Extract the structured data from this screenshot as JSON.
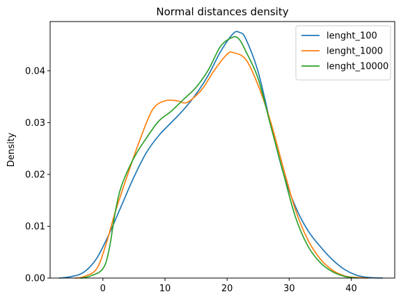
{
  "chart_data": {
    "type": "line",
    "title": "Normal distances density",
    "xlabel": "",
    "ylabel": "Density",
    "xlim": [
      -8.5,
      47
    ],
    "ylim": [
      0,
      0.0495
    ],
    "x_ticks": [
      0,
      10,
      20,
      30,
      40
    ],
    "x_tick_labels": [
      "0",
      "10",
      "20",
      "30",
      "40"
    ],
    "y_ticks": [
      0.0,
      0.01,
      0.02,
      0.03,
      0.04
    ],
    "y_tick_labels": [
      "0.00",
      "0.01",
      "0.02",
      "0.03",
      "0.04"
    ],
    "grid": false,
    "legend_position": "top-right",
    "series": [
      {
        "name": "lenght_100",
        "color": "#1f77b4",
        "points": [
          [
            -7,
            0.0
          ],
          [
            -5,
            0.0003
          ],
          [
            -3,
            0.0012
          ],
          [
            -1,
            0.0038
          ],
          [
            1,
            0.0085
          ],
          [
            3,
            0.014
          ],
          [
            5,
            0.0195
          ],
          [
            7,
            0.0242
          ],
          [
            9,
            0.0275
          ],
          [
            11,
            0.03
          ],
          [
            13,
            0.0325
          ],
          [
            15,
            0.0355
          ],
          [
            17,
            0.0392
          ],
          [
            19,
            0.0438
          ],
          [
            21,
            0.0472
          ],
          [
            22,
            0.0474
          ],
          [
            23,
            0.0462
          ],
          [
            25,
            0.0398
          ],
          [
            27,
            0.0298
          ],
          [
            29,
            0.0205
          ],
          [
            31,
            0.0138
          ],
          [
            33,
            0.0092
          ],
          [
            35,
            0.0061
          ],
          [
            37,
            0.0035
          ],
          [
            39,
            0.0016
          ],
          [
            41,
            0.0005
          ],
          [
            43,
            0.0001
          ],
          [
            45,
            0.0
          ]
        ]
      },
      {
        "name": "lenght_1000",
        "color": "#ff7f0e",
        "points": [
          [
            -4.5,
            0.0
          ],
          [
            -3,
            0.0003
          ],
          [
            -1,
            0.0018
          ],
          [
            0.5,
            0.0065
          ],
          [
            2,
            0.0128
          ],
          [
            4,
            0.02
          ],
          [
            6,
            0.0268
          ],
          [
            8,
            0.0325
          ],
          [
            10,
            0.0342
          ],
          [
            12,
            0.0342
          ],
          [
            13,
            0.0338
          ],
          [
            14,
            0.0342
          ],
          [
            16,
            0.0365
          ],
          [
            18,
            0.0402
          ],
          [
            20,
            0.0432
          ],
          [
            21,
            0.0435
          ],
          [
            23,
            0.0422
          ],
          [
            25,
            0.0372
          ],
          [
            27,
            0.0302
          ],
          [
            29,
            0.0215
          ],
          [
            31,
            0.0132
          ],
          [
            33,
            0.0074
          ],
          [
            35,
            0.0037
          ],
          [
            37,
            0.0015
          ],
          [
            39,
            0.0004
          ],
          [
            41,
            0.0001
          ],
          [
            42.5,
            0.0
          ]
        ]
      },
      {
        "name": "lenght_10000",
        "color": "#2ca02c",
        "points": [
          [
            -3.5,
            0.0
          ],
          [
            -2,
            0.0004
          ],
          [
            0,
            0.0018
          ],
          [
            1,
            0.0055
          ],
          [
            2,
            0.0128
          ],
          [
            3,
            0.0178
          ],
          [
            5,
            0.0232
          ],
          [
            7,
            0.027
          ],
          [
            9,
            0.0303
          ],
          [
            11,
            0.0322
          ],
          [
            13,
            0.0345
          ],
          [
            15,
            0.0368
          ],
          [
            17,
            0.0402
          ],
          [
            19,
            0.0448
          ],
          [
            21,
            0.0465
          ],
          [
            22,
            0.046
          ],
          [
            23,
            0.0438
          ],
          [
            25,
            0.0385
          ],
          [
            27,
            0.0295
          ],
          [
            29,
            0.0205
          ],
          [
            31,
            0.0118
          ],
          [
            33,
            0.0062
          ],
          [
            35,
            0.003
          ],
          [
            37,
            0.0012
          ],
          [
            39,
            0.0003
          ],
          [
            41,
            0.0
          ]
        ]
      }
    ]
  }
}
